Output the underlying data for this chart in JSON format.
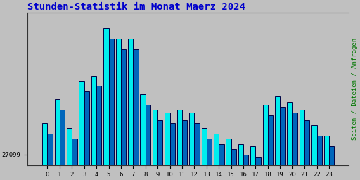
{
  "title": "Stunden-Statistik im Monat Maerz 2024",
  "title_color": "#0000cc",
  "title_fontsize": 10,
  "ylabel_right": "Seiten / Dateien / Anfragen",
  "ylabel_right_color": "#007700",
  "background_color": "#c0c0c0",
  "plot_bg_color": "#c0c0c0",
  "bar1_face_color": "#00eeee",
  "bar1_edge_color": "#000044",
  "bar2_face_color": "#0066bb",
  "bar2_edge_color": "#000044",
  "categories": [
    0,
    1,
    2,
    3,
    4,
    5,
    6,
    7,
    8,
    9,
    10,
    11,
    12,
    13,
    14,
    15,
    16,
    17,
    18,
    19,
    20,
    21,
    22,
    23
  ],
  "values1": [
    27220,
    27310,
    27200,
    27380,
    27400,
    27580,
    27540,
    27540,
    27330,
    27270,
    27260,
    27270,
    27260,
    27200,
    27180,
    27160,
    27140,
    27130,
    27290,
    27320,
    27300,
    27270,
    27210,
    27170
  ],
  "values2": [
    27180,
    27270,
    27160,
    27340,
    27360,
    27540,
    27500,
    27500,
    27290,
    27230,
    27220,
    27230,
    27220,
    27160,
    27140,
    27120,
    27100,
    27090,
    27250,
    27280,
    27260,
    27230,
    27170,
    27130
  ],
  "ylim_min": 27060,
  "ylim_max": 27640,
  "ytick_value": 27099,
  "ytick_label": "27099",
  "font_family": "monospace",
  "bar_width": 0.42,
  "figsize": [
    5.12,
    2.56
  ],
  "dpi": 100
}
